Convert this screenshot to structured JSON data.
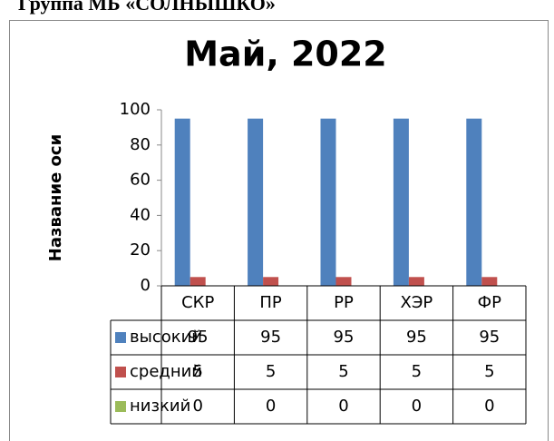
{
  "header": "Группа МБ «СОЛНЫШКО»",
  "chart_data": {
    "type": "bar",
    "title": "Май, 2022",
    "y_label": "Название оси",
    "categories": [
      "СКР",
      "ПР",
      "РР",
      "ХЭР",
      "ФР"
    ],
    "series": [
      {
        "name": "высокий",
        "color": "#4f81bd",
        "values": [
          95,
          95,
          95,
          95,
          95
        ]
      },
      {
        "name": "средний",
        "color": "#c0504d",
        "values": [
          5,
          5,
          5,
          5,
          5
        ]
      },
      {
        "name": "низкий",
        "color": "#9bbb59",
        "values": [
          0,
          0,
          0,
          0,
          0
        ]
      }
    ],
    "ylim": [
      0,
      100
    ],
    "yticks": [
      0,
      20,
      40,
      60,
      80,
      100
    ],
    "grid": false,
    "data_table": true
  }
}
